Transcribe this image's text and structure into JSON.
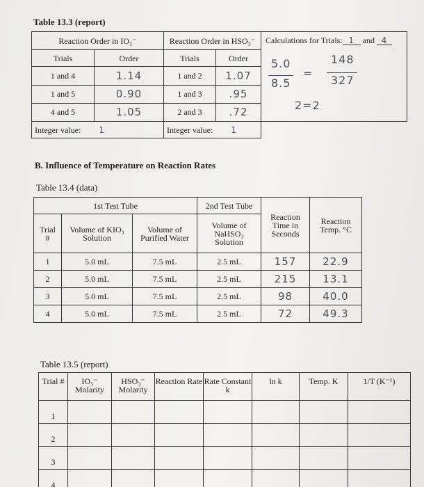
{
  "table_13_3": {
    "title": "Table 13.3 (report)",
    "io3": {
      "header": "Reaction Order in IO₃⁻",
      "columns": [
        "Trials",
        "Order"
      ],
      "rows": [
        [
          "1 and 4",
          "1.14"
        ],
        [
          "1 and 5",
          "0.90"
        ],
        [
          "4 and 5",
          "1.05"
        ]
      ],
      "integer_label": "Integer value:",
      "integer_value": "1"
    },
    "hso3": {
      "header": "Reaction Order in HSO₃⁻",
      "columns": [
        "Trials",
        "Order"
      ],
      "rows": [
        [
          "1 and 2",
          "1.07"
        ],
        [
          "1 and 3",
          ".95"
        ],
        [
          "2 and 3",
          ".72"
        ]
      ],
      "integer_label": "Integer value:",
      "integer_value": "1"
    },
    "calculations": {
      "label": "Calculations for Trials:",
      "trial_a": "1",
      "and": "and",
      "trial_b": "4",
      "work": [
        "5.0",
        "8.5",
        "=",
        "148",
        "327",
        "2=2"
      ]
    }
  },
  "section_b": {
    "title": "B. Influence of Temperature on Reaction Rates"
  },
  "table_13_4": {
    "title": "Table 13.4 (data)",
    "group_headers": [
      "1st Test Tube",
      "2nd Test Tube"
    ],
    "columns": [
      "Trial #",
      "Volume of KIO₃ Solution",
      "Volume of Purified Water",
      "Volume of NaHSO₃ Solution",
      "Reaction Time in Seconds",
      "Reaction Temp. °C"
    ],
    "rows": [
      [
        "1",
        "5.0 mL",
        "7.5 mL",
        "2.5 mL",
        "157",
        "22.9"
      ],
      [
        "2",
        "5.0 mL",
        "7.5 mL",
        "2.5 mL",
        "215",
        "13.1"
      ],
      [
        "3",
        "5.0 mL",
        "7.5 mL",
        "2.5 mL",
        "98",
        "40.0"
      ],
      [
        "4",
        "5.0 mL",
        "7.5 mL",
        "2.5 mL",
        "72",
        "49.3"
      ]
    ]
  },
  "table_13_5": {
    "title": "Table 13.5 (report)",
    "columns": [
      "Trial #",
      "IO₃⁻ Molarity",
      "HSO₃⁻ Molarity",
      "Reaction Rate",
      "Rate Constant k",
      "ln k",
      "Temp. K",
      "1/T (K⁻¹)"
    ],
    "rows": [
      "1",
      "2",
      "3",
      "4"
    ]
  }
}
